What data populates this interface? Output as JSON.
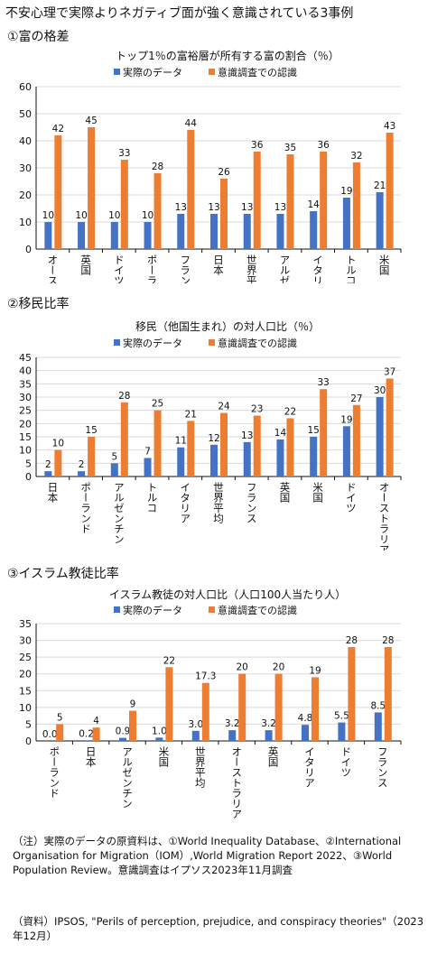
{
  "page_title": "不安心理で実際よりネガティブ面が強く意識されている3事例",
  "sections": [
    {
      "heading": "①富の格差"
    },
    {
      "heading": "②移民比率"
    },
    {
      "heading": "③イスラム教徒比率"
    }
  ],
  "colors": {
    "actual": "#4472C4",
    "perceived": "#ED7D31"
  },
  "chart_data": [
    {
      "type": "bar",
      "title": "トップ1％の富裕層が所有する富の割合（％）",
      "categories": [
        "オーストラリア",
        "英国",
        "ドイツ",
        "ポーランド",
        "フランス",
        "日本",
        "世界平均",
        "アルゼンチン",
        "イタリア",
        "トルコ",
        "米国"
      ],
      "series": [
        {
          "name": "実際のデータ",
          "values": [
            10,
            10,
            10,
            10,
            13,
            13,
            13,
            13,
            14,
            19,
            21
          ],
          "labels": [
            "10",
            "10",
            "10",
            "10",
            "13",
            "13",
            "13",
            "13",
            "14",
            "19",
            "21"
          ]
        },
        {
          "name": "意識調査での認識",
          "values": [
            42,
            45,
            33,
            28,
            44,
            26,
            36,
            35,
            36,
            32,
            43
          ],
          "labels": [
            "42",
            "45",
            "33",
            "28",
            "44",
            "26",
            "36",
            "35",
            "36",
            "32",
            "43"
          ]
        }
      ],
      "ylim": [
        0,
        60
      ],
      "yticks": [
        "0",
        "10",
        "20",
        "30",
        "40",
        "50",
        "60"
      ],
      "ytick_values": [
        0,
        10,
        20,
        30,
        40,
        50,
        60
      ],
      "legend_position": "top",
      "grid": true
    },
    {
      "type": "bar",
      "title": "移民（他国生まれ）の対人口比（％）",
      "categories": [
        "日本",
        "ポーランド",
        "アルゼンチン",
        "トルコ",
        "イタリア",
        "世界平均",
        "フランス",
        "英国",
        "米国",
        "ドイツ",
        "オーストラリア"
      ],
      "series": [
        {
          "name": "実際のデータ",
          "values": [
            2,
            2,
            5,
            7,
            11,
            12,
            13,
            14,
            15,
            19,
            30
          ],
          "labels": [
            "2",
            "2",
            "5",
            "7",
            "11",
            "12",
            "13",
            "14",
            "15",
            "19",
            "30"
          ]
        },
        {
          "name": "意識調査での認識",
          "values": [
            10,
            15,
            28,
            25,
            21,
            24,
            23,
            22,
            33,
            27,
            37
          ],
          "labels": [
            "10",
            "15",
            "28",
            "25",
            "21",
            "24",
            "23",
            "22",
            "33",
            "27",
            "37"
          ]
        }
      ],
      "ylim": [
        0,
        45
      ],
      "yticks": [
        "0",
        "5",
        "10",
        "15",
        "20",
        "25",
        "30",
        "35",
        "40",
        "45"
      ],
      "ytick_values": [
        0,
        5,
        10,
        15,
        20,
        25,
        30,
        35,
        40,
        45
      ],
      "legend_position": "top",
      "grid": true
    },
    {
      "type": "bar",
      "title": "イスラム教徒の対人口比（人口100人当たり人）",
      "categories": [
        "ポーランド",
        "日本",
        "アルゼンチン",
        "米国",
        "世界平均",
        "オーストラリア",
        "英国",
        "イタリア",
        "ドイツ",
        "フランス"
      ],
      "series": [
        {
          "name": "実際のデータ",
          "values": [
            0.0,
            0.2,
            0.9,
            1.0,
            3.0,
            3.2,
            3.2,
            4.8,
            5.5,
            8.5
          ],
          "labels": [
            "0.0",
            "0.2",
            "0.9",
            "1.0",
            "3.0",
            "3.2",
            "3.2",
            "4.8",
            "5.5",
            "8.5"
          ]
        },
        {
          "name": "意識調査での認識",
          "values": [
            5,
            4,
            9,
            22,
            17.3,
            20,
            20,
            19,
            28,
            28
          ],
          "labels": [
            "5",
            "4",
            "9",
            "22",
            "17.3",
            "20",
            "20",
            "19",
            "28",
            "28"
          ]
        }
      ],
      "ylim": [
        0,
        35
      ],
      "yticks": [
        "0",
        "5",
        "10",
        "15",
        "20",
        "25",
        "30",
        "35"
      ],
      "ytick_values": [
        0,
        5,
        10,
        15,
        20,
        25,
        30,
        35
      ],
      "legend_position": "top",
      "grid": true
    }
  ],
  "notes": {
    "note": "（注）実際のデータの原資料は、①World Inequality Database、②International Organisation for Migration（IOM）,World Migration Report 2022、③World Population Review。意識調査はイプソス2023年11月調査",
    "source": "（資料）IPSOS, \"Perils of perception, prejudice, and conspiracy theories\"（2023年12月）"
  }
}
